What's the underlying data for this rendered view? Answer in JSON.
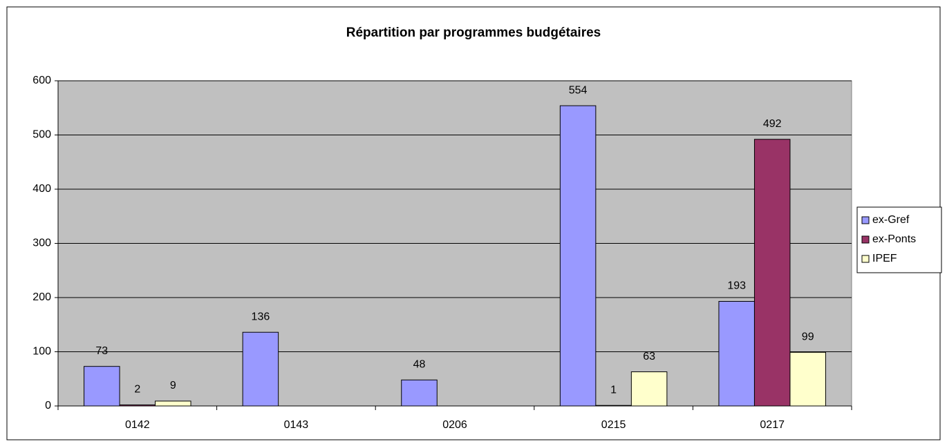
{
  "chart_data": {
    "type": "bar",
    "title": "Répartition par programmes budgétaires",
    "categories": [
      "0142",
      "0143",
      "0206",
      "0215",
      "0217"
    ],
    "series": [
      {
        "name": "ex-Gref",
        "color": "#9999ff",
        "values": [
          73,
          136,
          48,
          554,
          193
        ]
      },
      {
        "name": "ex-Ponts",
        "color": "#993366",
        "values": [
          2,
          null,
          null,
          1,
          492
        ]
      },
      {
        "name": "IPEF",
        "color": "#ffffcc",
        "values": [
          9,
          null,
          null,
          63,
          99
        ]
      }
    ],
    "ylim": [
      0,
      600
    ],
    "yticks": [
      0,
      100,
      200,
      300,
      400,
      500,
      600
    ],
    "grid": true,
    "legend": "right"
  }
}
